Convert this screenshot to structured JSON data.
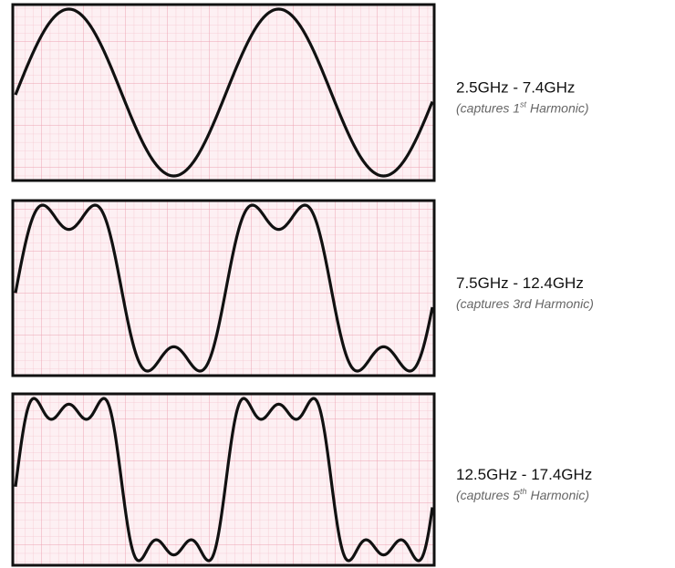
{
  "panels": [
    {
      "range": "2.5GHz - 7.4GHz",
      "caption": [
        "(captures 1",
        "st",
        " Harmonic)"
      ]
    },
    {
      "range": "7.5GHz - 12.4GHz",
      "caption": [
        "(captures 3rd Harmonic)"
      ]
    },
    {
      "range": "12.5GHz - 17.4GHz",
      "caption": [
        "(captures 5",
        "th",
        "  Harmonic)"
      ]
    }
  ]
}
